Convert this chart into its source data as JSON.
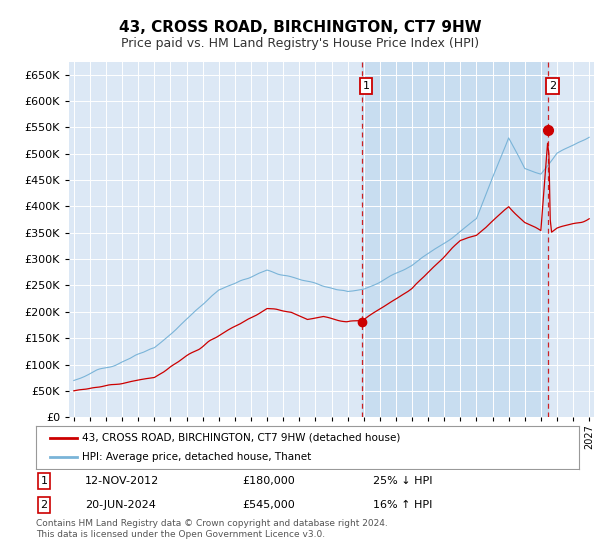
{
  "title": "43, CROSS ROAD, BIRCHINGTON, CT7 9HW",
  "subtitle": "Price paid vs. HM Land Registry's House Price Index (HPI)",
  "legend_label_red": "43, CROSS ROAD, BIRCHINGTON, CT7 9HW (detached house)",
  "legend_label_blue": "HPI: Average price, detached house, Thanet",
  "annotation1_date": "12-NOV-2012",
  "annotation1_price": "£180,000",
  "annotation1_hpi": "25% ↓ HPI",
  "annotation2_date": "20-JUN-2024",
  "annotation2_price": "£545,000",
  "annotation2_hpi": "16% ↑ HPI",
  "footnote": "Contains HM Land Registry data © Crown copyright and database right 2024.\nThis data is licensed under the Open Government Licence v3.0.",
  "ylim_min": 0,
  "ylim_max": 675000,
  "yticks": [
    0,
    50000,
    100000,
    150000,
    200000,
    250000,
    300000,
    350000,
    400000,
    450000,
    500000,
    550000,
    600000,
    650000
  ],
  "hpi_color": "#7ab4d8",
  "price_color": "#cc0000",
  "background_color": "#dce8f5",
  "shade_color": "#c8ddf0",
  "vline_color": "#cc0000",
  "sale1_x": 2012.87,
  "sale1_y": 180000,
  "sale2_x": 2024.47,
  "sale2_y": 545000,
  "xlim_min": 1994.7,
  "xlim_max": 2027.3
}
